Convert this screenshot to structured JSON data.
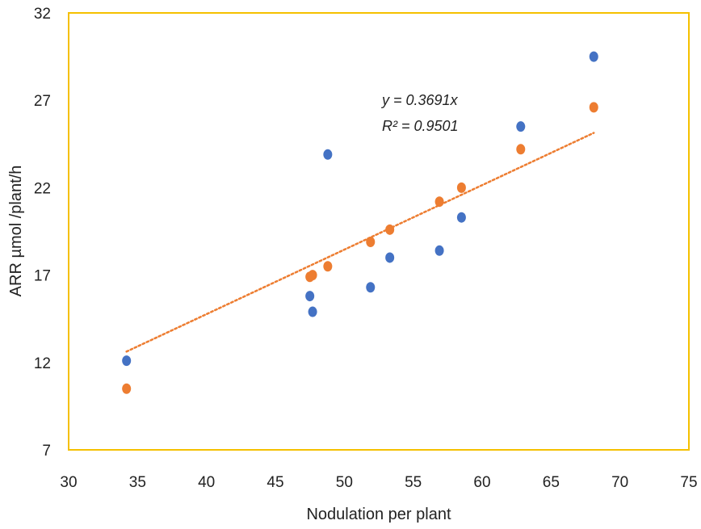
{
  "chart_data": {
    "type": "scatter",
    "title": "",
    "xlabel": "Nodulation per plant",
    "ylabel": "ARR µmol /plant/h",
    "xlim": [
      30,
      75
    ],
    "ylim": [
      7,
      32
    ],
    "x_ticks": [
      "30",
      "35",
      "40",
      "45",
      "50",
      "55",
      "60",
      "65",
      "70",
      "75"
    ],
    "y_ticks": [
      "7",
      "12",
      "17",
      "22",
      "27",
      "32"
    ],
    "grid": false,
    "legend": "none",
    "border_color": "#f5c000",
    "series": [
      {
        "color": "#4472c4",
        "points": [
          {
            "x": 34.2,
            "y": 12.1
          },
          {
            "x": 47.5,
            "y": 15.8
          },
          {
            "x": 47.7,
            "y": 14.9
          },
          {
            "x": 48.8,
            "y": 23.9
          },
          {
            "x": 51.9,
            "y": 16.3
          },
          {
            "x": 53.3,
            "y": 18.0
          },
          {
            "x": 56.9,
            "y": 18.4
          },
          {
            "x": 58.5,
            "y": 20.3
          },
          {
            "x": 62.8,
            "y": 25.5
          },
          {
            "x": 68.1,
            "y": 29.5
          }
        ]
      },
      {
        "color": "#ed7d31",
        "points": [
          {
            "x": 34.2,
            "y": 10.5
          },
          {
            "x": 47.5,
            "y": 16.9
          },
          {
            "x": 47.7,
            "y": 17.0
          },
          {
            "x": 48.8,
            "y": 17.5
          },
          {
            "x": 51.9,
            "y": 18.9
          },
          {
            "x": 53.3,
            "y": 19.6
          },
          {
            "x": 56.9,
            "y": 21.2
          },
          {
            "x": 58.5,
            "y": 22.0
          },
          {
            "x": 62.8,
            "y": 24.2
          },
          {
            "x": 68.1,
            "y": 26.6
          }
        ]
      }
    ],
    "trendline": {
      "color": "#ed7d31",
      "style": "dotted",
      "slope": 0.3691,
      "x_range": [
        34.2,
        68.1
      ],
      "equation": "y = 0.3691x",
      "r_squared": "R² = 0.9501"
    }
  }
}
